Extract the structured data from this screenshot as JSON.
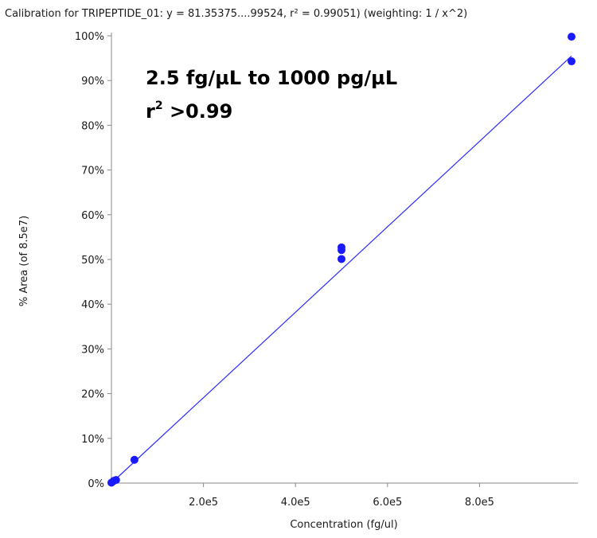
{
  "chart_data": {
    "type": "scatter",
    "title": "Calibration for TRIPEPTIDE_01: y = 81.35375....99524, r² = 0.99051)  (weighting: 1 / x^2)",
    "xlabel": "Concentration (fg/ul)",
    "ylabel": "% Area (of 8.5e7)",
    "xlim": [
      0,
      1000000
    ],
    "ylim": [
      0,
      100
    ],
    "x_ticks": [
      {
        "value": 200000,
        "label": "2.0e5"
      },
      {
        "value": 400000,
        "label": "4.0e5"
      },
      {
        "value": 600000,
        "label": "6.0e5"
      },
      {
        "value": 800000,
        "label": "8.0e5"
      }
    ],
    "y_ticks": [
      {
        "value": 0,
        "label": "0%"
      },
      {
        "value": 10,
        "label": "10%"
      },
      {
        "value": 20,
        "label": "20%"
      },
      {
        "value": 30,
        "label": "30%"
      },
      {
        "value": 40,
        "label": "40%"
      },
      {
        "value": 50,
        "label": "50%"
      },
      {
        "value": 60,
        "label": "60%"
      },
      {
        "value": 70,
        "label": "70%"
      },
      {
        "value": 80,
        "label": "80%"
      },
      {
        "value": 90,
        "label": "90%"
      },
      {
        "value": 100,
        "label": "100%"
      }
    ],
    "points": [
      {
        "x": 2.5,
        "y": 0.1
      },
      {
        "x": 5000,
        "y": 0.5
      },
      {
        "x": 10000,
        "y": 0.7
      },
      {
        "x": 50000,
        "y": 5.2
      },
      {
        "x": 500000,
        "y": 52.7
      },
      {
        "x": 500000,
        "y": 52.1
      },
      {
        "x": 500000,
        "y": 50.1
      },
      {
        "x": 1000000,
        "y": 99.8
      },
      {
        "x": 1000000,
        "y": 94.3
      }
    ],
    "fit_line": {
      "x": [
        0,
        1000000
      ],
      "y": [
        0.0,
        95.5
      ]
    },
    "point_color": "#1a1aff",
    "line_color": "#2b2bff",
    "annotation": {
      "line1": "2.5 fg/µL to 1000 pg/µL",
      "line2_base": "r",
      "line2_sup": "2",
      "line2_rest": " >0.99"
    },
    "grid": false
  }
}
